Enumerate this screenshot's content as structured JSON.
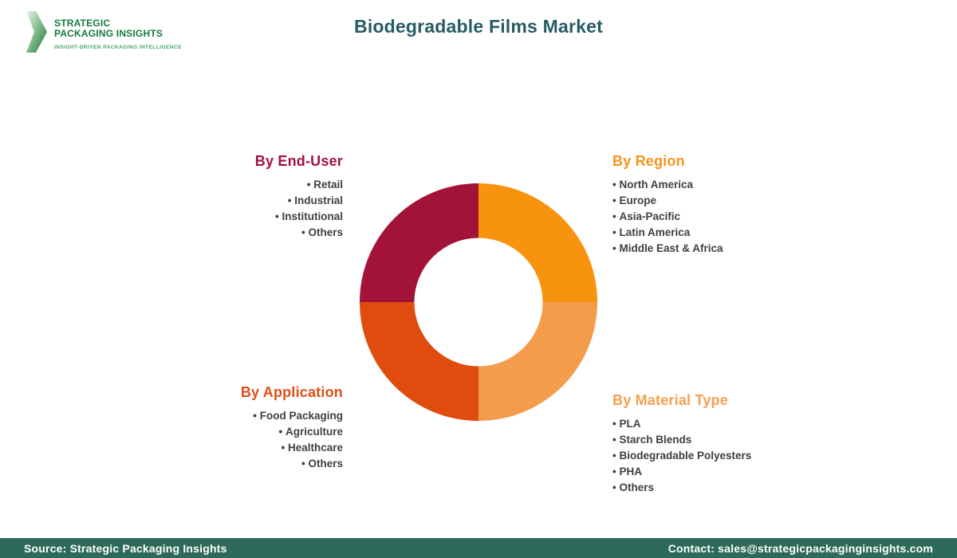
{
  "logo": {
    "line1": "STRATEGIC",
    "line2": "PACKAGING INSIGHTS",
    "tagline": "INSIGHT-DRIVEN PACKAGING INTELLIGENCE",
    "text_color": "#157A3C",
    "tagline_color": "#44A45B"
  },
  "title": "Biodegradable Films Market",
  "title_color": "#265C63",
  "sections": {
    "end_user": {
      "heading": "By End-User",
      "color": "#A31240",
      "items": [
        "Retail",
        "Industrial",
        "Institutional",
        "Others"
      ]
    },
    "region": {
      "heading": "By Region",
      "color": "#F8941D",
      "items": [
        "North America",
        "Europe",
        "Asia-Pacific",
        "Latin America",
        "Middle East & Africa"
      ]
    },
    "application": {
      "heading": "By Application",
      "color": "#E04E17",
      "items": [
        "Food Packaging",
        "Agriculture",
        "Healthcare",
        "Others"
      ]
    },
    "material": {
      "heading": "By Material Type",
      "color": "#F5A04E",
      "items": [
        "PLA",
        "Starch Blends",
        "Biodegradable Polyesters",
        "PHA",
        "Others"
      ]
    }
  },
  "chart_data": {
    "type": "pie",
    "subtype": "donut",
    "start_angle_deg": 0,
    "inner_radius_ratio": 0.54,
    "segments": [
      {
        "label": "By Region",
        "value": 25,
        "color": "#F8930D"
      },
      {
        "label": "By Material Type",
        "value": 25,
        "color": "#F29C4C"
      },
      {
        "label": "By Application",
        "value": 25,
        "color": "#E04C0E"
      },
      {
        "label": "By End-User",
        "value": 25,
        "color": "#A31239"
      }
    ]
  },
  "footer": {
    "left": "Source: Strategic Packaging Insights",
    "right": "Contact: sales@strategicpackaginginsights.com",
    "background": "#2D6A59"
  }
}
